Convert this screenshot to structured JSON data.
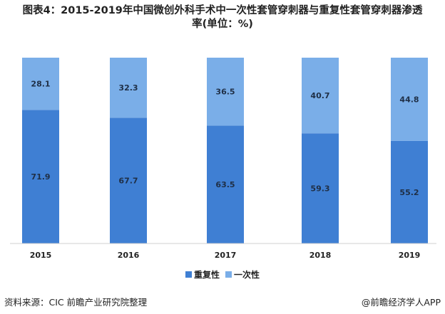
{
  "title_line1": "图表4：2015-2019年中国微创外科手术中一次性套管穿刺器与重复性套管穿刺器渗透",
  "title_line2": "率(单位：%)",
  "footer": {
    "source": "资料来源：CIC  前瞻产业研究院整理",
    "credit": "@前瞻经济学人APP"
  },
  "colors": {
    "reusable": "#3f7fd3",
    "disposable": "#7aaee8",
    "text": "#222222"
  },
  "chart_data": {
    "type": "bar",
    "stacked": true,
    "categories": [
      "2015",
      "2016",
      "2017",
      "2018",
      "2019"
    ],
    "series": [
      {
        "name": "重复性",
        "values": [
          71.9,
          67.7,
          63.5,
          59.3,
          55.2
        ]
      },
      {
        "name": "一次性",
        "values": [
          28.1,
          32.3,
          36.5,
          40.7,
          44.8
        ]
      }
    ],
    "value_labels": [
      [
        "71.9",
        "67.7",
        "63.5",
        "59.3",
        "55.2"
      ],
      [
        "28.1",
        "32.3",
        "36.5",
        "40.7",
        "44.8"
      ]
    ],
    "ylim": [
      0,
      100
    ],
    "grid": false,
    "legend": "bottom-center"
  }
}
